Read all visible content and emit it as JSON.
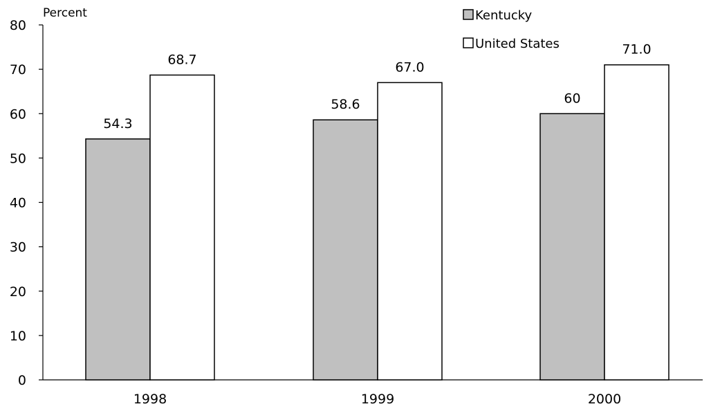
{
  "chart_data": {
    "type": "bar",
    "title": "",
    "xlabel": "",
    "ylabel": "Percent",
    "ylim": [
      0,
      80
    ],
    "yticks": [
      0,
      10,
      20,
      30,
      40,
      50,
      60,
      70,
      80
    ],
    "categories": [
      "1998",
      "1999",
      "2000"
    ],
    "series": [
      {
        "name": "Kentucky",
        "values": [
          54.3,
          58.6,
          60
        ],
        "labels": [
          "54.3",
          "58.6",
          "60"
        ],
        "color": "#c0c0c0"
      },
      {
        "name": "United States",
        "values": [
          68.7,
          67.0,
          71.0
        ],
        "labels": [
          "68.7",
          "67.0",
          "71.0"
        ],
        "color": "#ffffff"
      }
    ],
    "legend_position": "top-right",
    "grid": false
  }
}
